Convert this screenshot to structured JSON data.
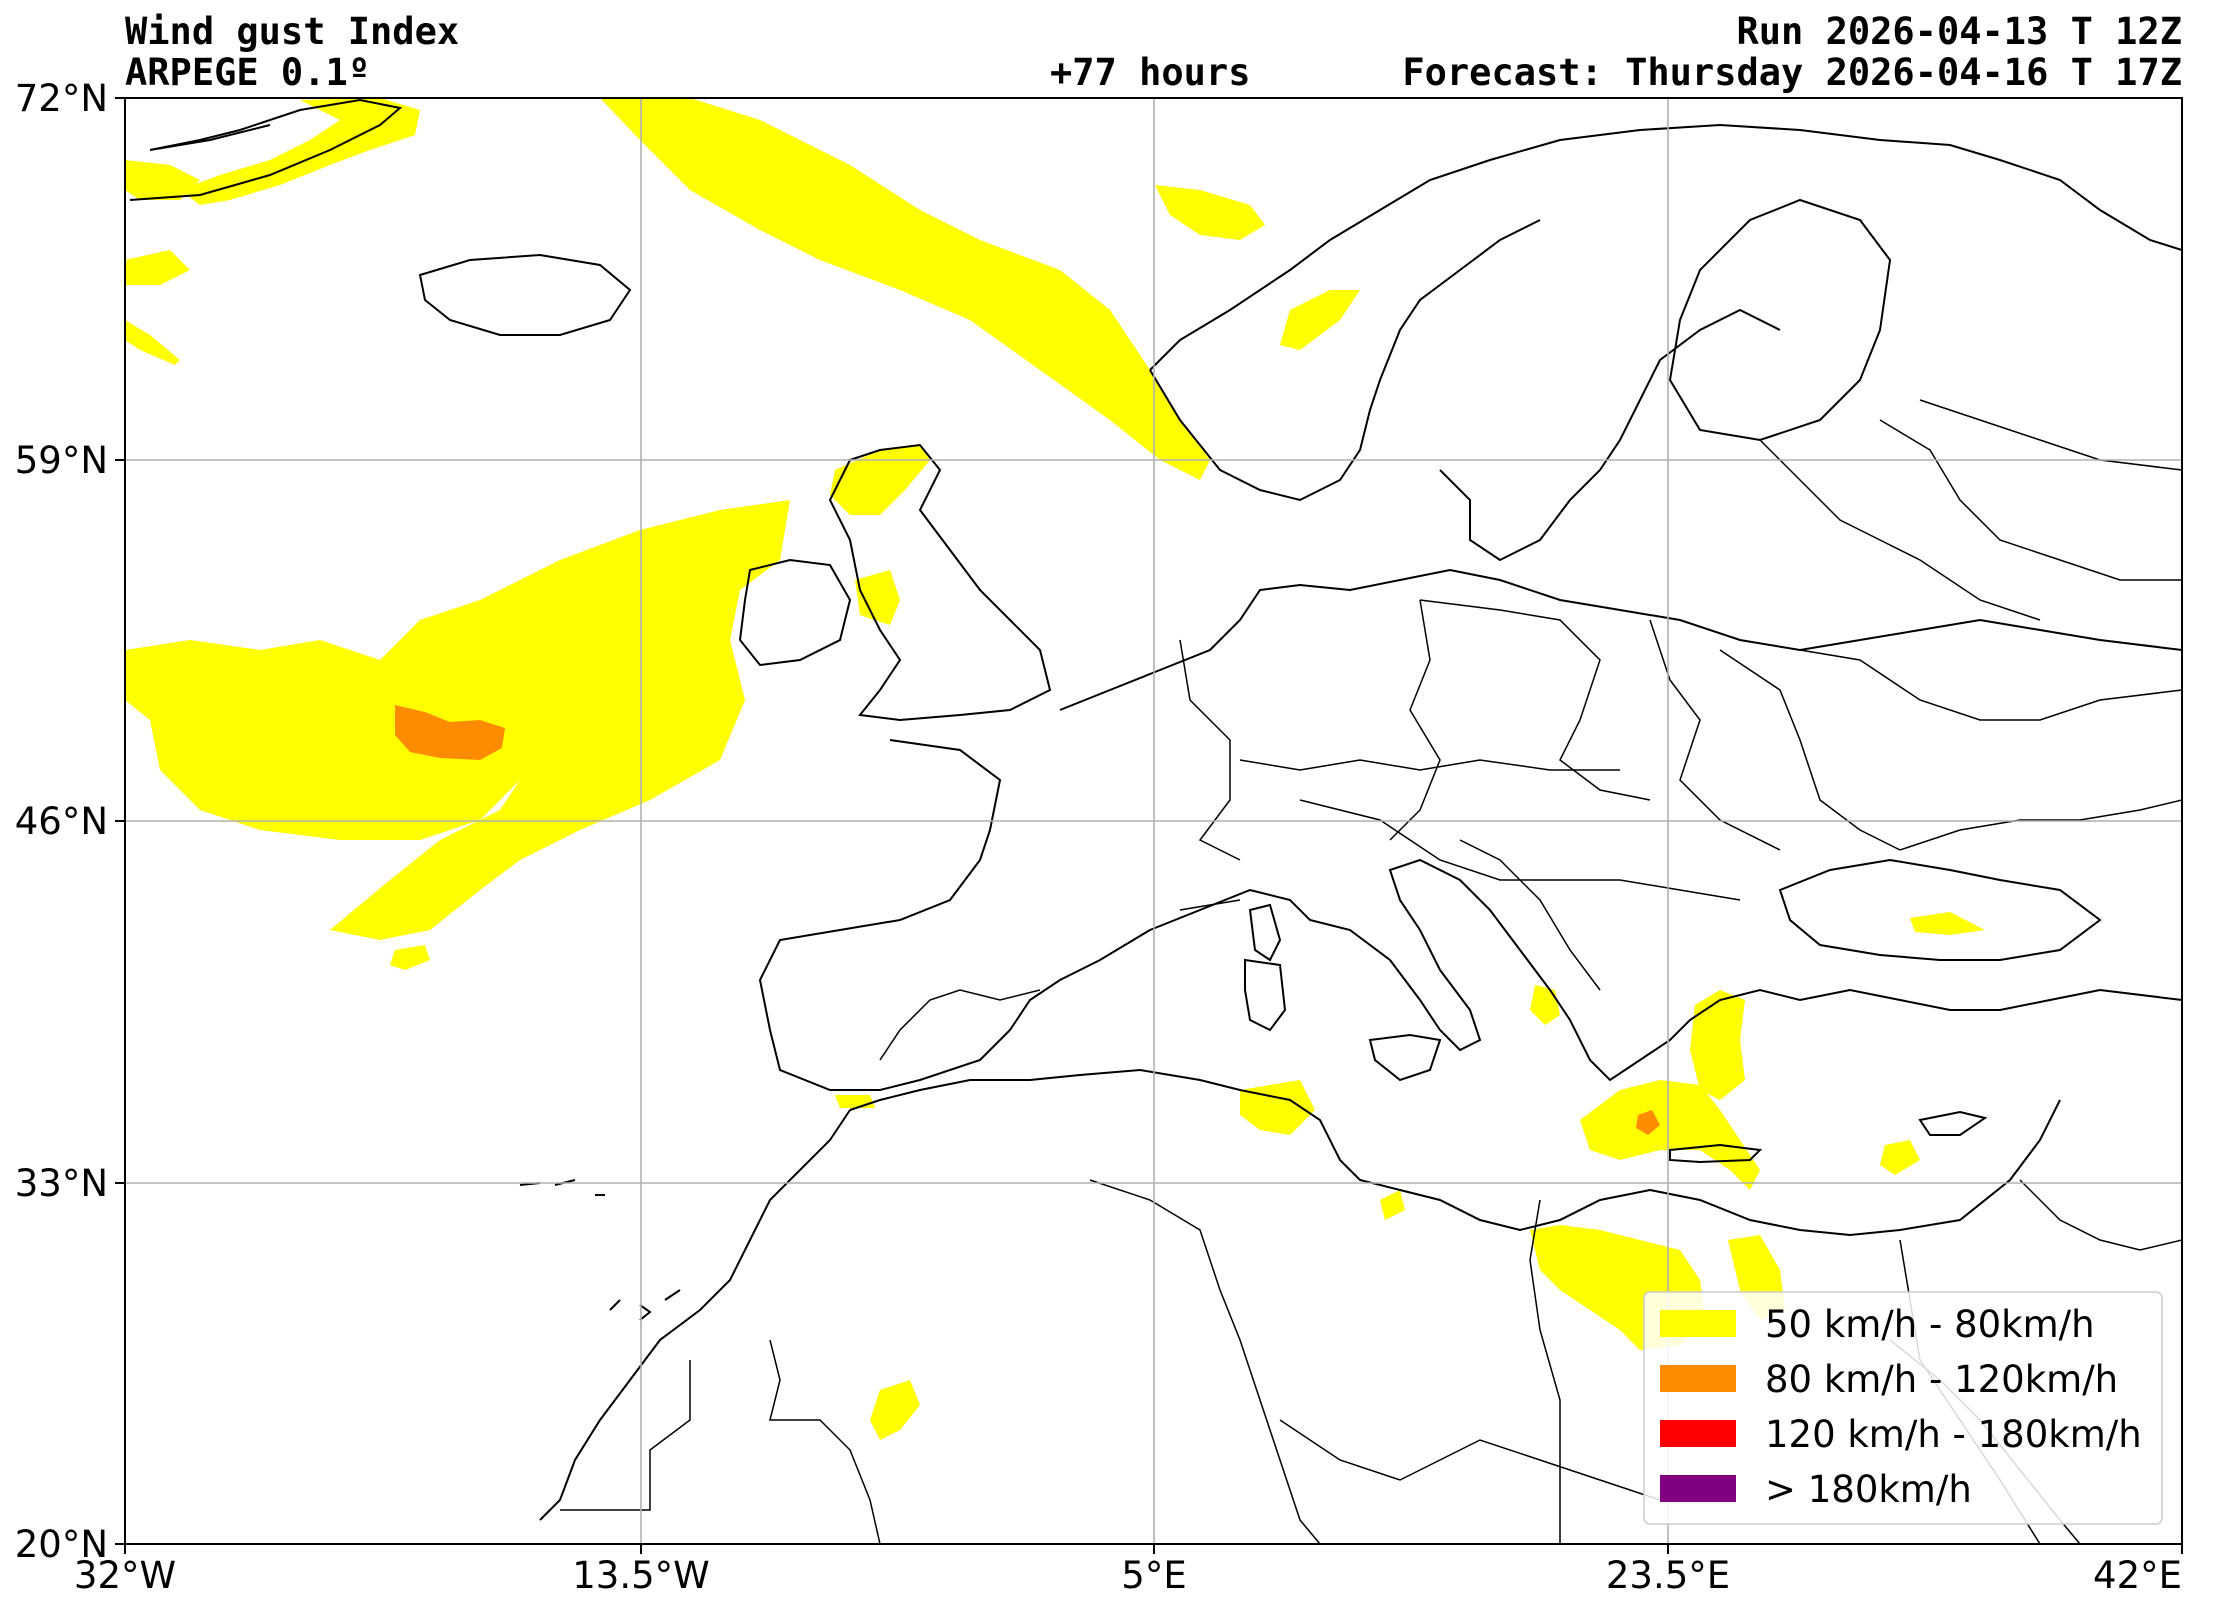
{
  "header": {
    "title": "Wind gust Index",
    "model": "ARPEGE 0.1º",
    "lead": "+77 hours",
    "run": "Run 2026-04-13 T 12Z",
    "forecast": "Forecast: Thursday 2026-04-16 T 17Z"
  },
  "axes": {
    "lat_ticks": [
      "72°N",
      "59°N",
      "46°N",
      "33°N",
      "20°N"
    ],
    "lon_ticks": [
      "32°W",
      "13.5°W",
      "5°E",
      "23.5°E",
      "42°E"
    ],
    "lat_values": [
      72,
      59,
      46,
      33,
      20
    ],
    "lon_values": [
      -32,
      -13.5,
      5,
      23.5,
      42
    ],
    "lat_range": [
      20,
      72
    ],
    "lon_range": [
      -32,
      42
    ],
    "grid": true
  },
  "legend": {
    "placement": "bottom-right",
    "items": [
      {
        "label": "50 km/h - 80km/h",
        "color": "#ffff00"
      },
      {
        "label": "80 km/h - 120km/h",
        "color": "#ff8c00"
      },
      {
        "label": "120 km/h - 180km/h",
        "color": "#ff0000"
      },
      {
        "label": "> 180km/h",
        "color": "#800080"
      }
    ]
  },
  "colors": {
    "gust_50_80": "#ffff00",
    "gust_80_120": "#ff8c00",
    "coast": "#000000",
    "grid": "#b0b0b0"
  }
}
